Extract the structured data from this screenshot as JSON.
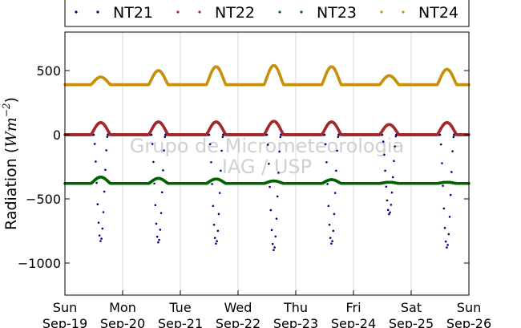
{
  "chart_data": {
    "type": "scatter",
    "ylabel_text": "Radiation (",
    "ylabel_math": "Wm",
    "ylabel_exp": "−2",
    "ylabel_close": ")",
    "xlabel": "",
    "ylim": [
      -1250,
      800
    ],
    "xlim": [
      0,
      7
    ],
    "yticks": [
      500,
      0,
      -500,
      -1000
    ],
    "ytick_labels": [
      "500",
      "0",
      "−500",
      "−1000"
    ],
    "xticks": [
      {
        "day": "Sun",
        "date": "Sep-19"
      },
      {
        "day": "Mon",
        "date": "Sep-20"
      },
      {
        "day": "Tue",
        "date": "Sep-21"
      },
      {
        "day": "Wed",
        "date": "Sep-22"
      },
      {
        "day": "Thu",
        "date": "Sep-23"
      },
      {
        "day": "Fri",
        "date": "Sep-24"
      },
      {
        "day": "Sat",
        "date": "Sep-25"
      },
      {
        "day": "Sun",
        "date": "Sep-26"
      }
    ],
    "grid": "vertical",
    "legend": {
      "placement": "top",
      "entries": [
        "NT21",
        "NT22",
        "NT23",
        "NT24"
      ]
    },
    "watermark": [
      "Grupo de Micrometeorologia",
      "IAG / USP"
    ],
    "series": [
      {
        "name": "NT21",
        "color": "#000080",
        "baseline": 0,
        "daily_peak": [
          -830,
          -840,
          -850,
          -900,
          -850,
          -620,
          -880
        ]
      },
      {
        "name": "NT22",
        "color": "#a52a2a",
        "baseline": 0,
        "daily_peak": [
          95,
          100,
          100,
          105,
          100,
          80,
          95
        ]
      },
      {
        "name": "NT23",
        "color": "#006400",
        "baseline": -380,
        "daily_peak": [
          -330,
          -340,
          -345,
          -360,
          -350,
          -370,
          -370
        ]
      },
      {
        "name": "NT24",
        "color": "#c8900a",
        "baseline": 390,
        "daily_peak": [
          450,
          500,
          530,
          540,
          530,
          460,
          510
        ]
      }
    ]
  }
}
